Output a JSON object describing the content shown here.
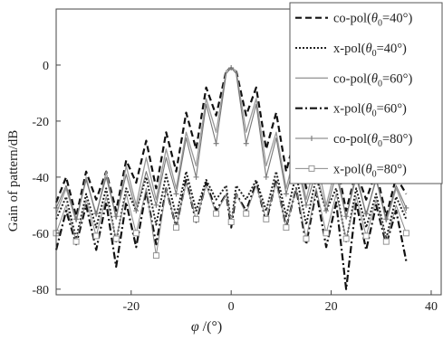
{
  "chart_data": {
    "type": "line",
    "title": "",
    "xlabel": "φ /(°)",
    "ylabel": "Gain of pattern/dB",
    "xlim": [
      -35,
      42
    ],
    "ylim": [
      -82,
      20
    ],
    "xticks": [
      -20,
      0,
      20,
      40
    ],
    "yticks": [
      0,
      -20,
      -40,
      -60,
      -80
    ],
    "grid": false,
    "legend_position": "top-right",
    "legend_entries": [
      "co-pol(θ0=40°)",
      "x-pol(θ0=40°)",
      "co-pol(θ0=60°)",
      "x-pol(θ0=60°)",
      "co-pol(θ0=80°)",
      "x-pol(θ0=80°)"
    ],
    "series": [
      {
        "name": "co-pol(θ0=40°)",
        "x": [
          -35,
          -33,
          -31,
          -29,
          -27,
          -25,
          -23,
          -21,
          -19,
          -17,
          -15,
          -13,
          -11,
          -9,
          -7,
          -5,
          -3,
          -1,
          0,
          1,
          3,
          5,
          7,
          9,
          11,
          13,
          15,
          17,
          19,
          21,
          23,
          25,
          27,
          29,
          31,
          33,
          35
        ],
        "y": [
          -49,
          -40,
          -54,
          -38,
          -48,
          -38,
          -52,
          -34,
          -42,
          -27,
          -44,
          -24,
          -38,
          -17,
          -30,
          -8,
          -18,
          -2,
          -1,
          -2,
          -18,
          -8,
          -30,
          -17,
          -38,
          -24,
          -44,
          -27,
          -42,
          -34,
          -52,
          -38,
          -48,
          -38,
          -54,
          -40,
          -46
        ]
      },
      {
        "name": "x-pol(θ0=40°)",
        "x": [
          -35,
          -33,
          -31,
          -29,
          -27,
          -25,
          -23,
          -21,
          -19,
          -17,
          -15,
          -13,
          -11,
          -9,
          -7,
          -5,
          -3,
          -1,
          0,
          1,
          3,
          5,
          7,
          9,
          11,
          13,
          15,
          17,
          19,
          21,
          23,
          25,
          27,
          29,
          31,
          33,
          35
        ],
        "y": [
          -55,
          -47,
          -62,
          -46,
          -58,
          -44,
          -63,
          -44,
          -52,
          -40,
          -57,
          -39,
          -54,
          -38,
          -52,
          -41,
          -48,
          -43,
          -57,
          -43,
          -48,
          -41,
          -52,
          -38,
          -54,
          -39,
          -57,
          -40,
          -52,
          -44,
          -63,
          -44,
          -58,
          -46,
          -62,
          -47,
          -55
        ]
      },
      {
        "name": "co-pol(θ0=60°)",
        "x": [
          -35,
          -33,
          -31,
          -29,
          -27,
          -25,
          -23,
          -21,
          -19,
          -17,
          -15,
          -13,
          -11,
          -9,
          -7,
          -5,
          -3,
          -1,
          0,
          1,
          3,
          5,
          7,
          9,
          11,
          13,
          15,
          17,
          19,
          21,
          23,
          25,
          27,
          29,
          31,
          33,
          35
        ],
        "y": [
          -53,
          -44,
          -56,
          -40,
          -54,
          -38,
          -55,
          -36,
          -50,
          -33,
          -48,
          -30,
          -44,
          -24,
          -36,
          -12,
          -24,
          -2,
          -1,
          -2,
          -24,
          -12,
          -36,
          -24,
          -44,
          -30,
          -48,
          -33,
          -50,
          -36,
          -55,
          -38,
          -54,
          -40,
          -56,
          -44,
          -53
        ]
      },
      {
        "name": "x-pol(θ0=60°)",
        "x": [
          -35,
          -33,
          -31,
          -29,
          -27,
          -25,
          -23,
          -21,
          -19,
          -17,
          -15,
          -13,
          -11,
          -9,
          -7,
          -5,
          -3,
          -1,
          0,
          1,
          3,
          5,
          7,
          9,
          11,
          13,
          15,
          17,
          19,
          21,
          23,
          25,
          27,
          29,
          31,
          33,
          35
        ],
        "y": [
          -66,
          -52,
          -64,
          -50,
          -66,
          -49,
          -72,
          -49,
          -65,
          -45,
          -64,
          -44,
          -58,
          -41,
          -56,
          -42,
          -52,
          -46,
          -58,
          -46,
          -52,
          -42,
          -56,
          -41,
          -58,
          -44,
          -64,
          -45,
          -65,
          -49,
          -80,
          -49,
          -66,
          -50,
          -64,
          -52,
          -70
        ]
      },
      {
        "name": "co-pol(θ0=80°)",
        "x": [
          -35,
          -33,
          -31,
          -29,
          -27,
          -25,
          -23,
          -21,
          -19,
          -17,
          -15,
          -13,
          -11,
          -9,
          -7,
          -5,
          -3,
          -1,
          0,
          1,
          3,
          5,
          7,
          9,
          11,
          13,
          15,
          17,
          19,
          21,
          23,
          25,
          27,
          29,
          31,
          33,
          35
        ],
        "y": [
          -51,
          -43,
          -55,
          -41,
          -53,
          -40,
          -54,
          -39,
          -52,
          -38,
          -50,
          -33,
          -46,
          -26,
          -40,
          -14,
          -28,
          -3,
          -1,
          -3,
          -28,
          -14,
          -40,
          -26,
          -46,
          -33,
          -50,
          -38,
          -52,
          -39,
          -54,
          -40,
          -53,
          -41,
          -55,
          -43,
          -51
        ]
      },
      {
        "name": "x-pol(θ0=80°)",
        "x": [
          -35,
          -33,
          -31,
          -29,
          -27,
          -25,
          -23,
          -21,
          -19,
          -17,
          -15,
          -13,
          -11,
          -9,
          -7,
          -5,
          -3,
          -1,
          0,
          1,
          3,
          5,
          7,
          9,
          11,
          13,
          15,
          17,
          19,
          21,
          23,
          25,
          27,
          29,
          31,
          33,
          35
        ],
        "y": [
          -60,
          -50,
          -63,
          -48,
          -61,
          -47,
          -62,
          -46,
          -60,
          -44,
          -68,
          -44,
          -58,
          -42,
          -55,
          -43,
          -53,
          -46,
          -56,
          -46,
          -53,
          -43,
          -55,
          -42,
          -58,
          -44,
          -62,
          -44,
          -60,
          -46,
          -62,
          -47,
          -61,
          -48,
          -63,
          -50,
          -60
        ]
      }
    ]
  },
  "legend": {
    "items": [
      {
        "pre": "co-pol(",
        "sym": "θ",
        "sub": "0",
        "post": "=40°)"
      },
      {
        "pre": "x-pol(",
        "sym": "θ",
        "sub": "0",
        "post": "=40°)"
      },
      {
        "pre": "co-pol(",
        "sym": "θ",
        "sub": "0",
        "post": "=60°)"
      },
      {
        "pre": "x-pol(",
        "sym": "θ",
        "sub": "0",
        "post": "=60°)"
      },
      {
        "pre": "co-pol(",
        "sym": "θ",
        "sub": "0",
        "post": "=80°)"
      },
      {
        "pre": "x-pol(",
        "sym": "θ",
        "sub": "0",
        "post": "=80°)"
      }
    ]
  },
  "axis_labels": {
    "x_symbol": "φ",
    "x_unit": " /(°)",
    "y": "Gain of pattern/dB"
  },
  "series_styles": [
    {
      "color": "#111111",
      "dash": "7,4",
      "width": 2.2,
      "marker": "none"
    },
    {
      "color": "#222222",
      "dash": "2,2",
      "width": 2.0,
      "marker": "none"
    },
    {
      "color": "#9a9a9a",
      "dash": "none",
      "width": 1.3,
      "marker": "none"
    },
    {
      "color": "#111111",
      "dash": "8,3,2,3",
      "width": 2.2,
      "marker": "none"
    },
    {
      "color": "#777777",
      "dash": "none",
      "width": 1.1,
      "marker": "plus"
    },
    {
      "color": "#8a8a8a",
      "dash": "none",
      "width": 1.0,
      "marker": "square"
    }
  ]
}
